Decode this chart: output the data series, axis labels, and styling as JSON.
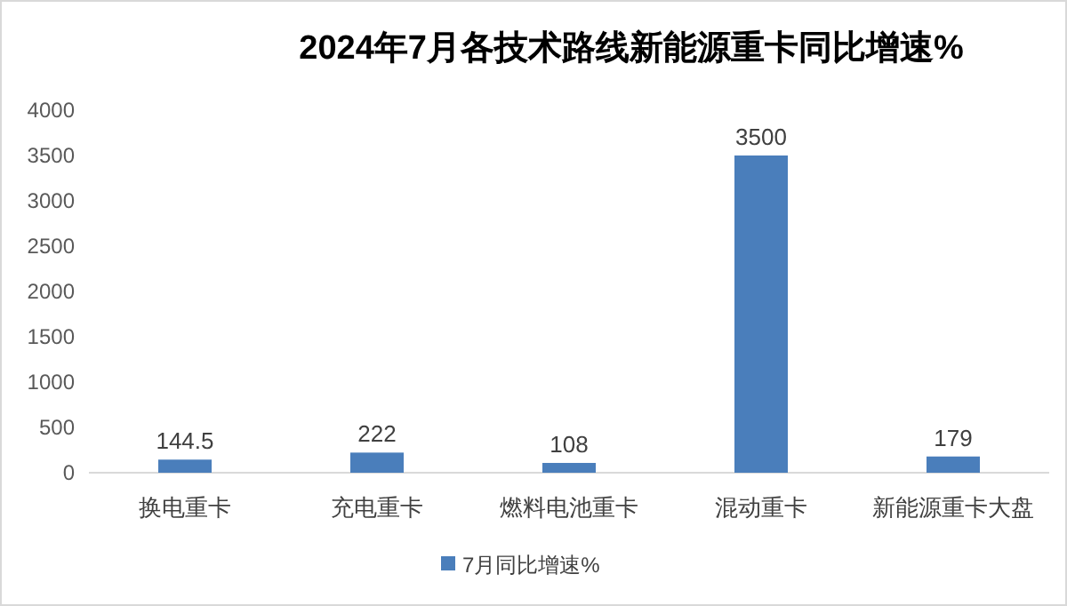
{
  "chart_data": {
    "type": "bar",
    "title": "2024年7月各技术路线新能源重卡同比增速%",
    "categories": [
      "换电重卡",
      "充电重卡",
      "燃料电池重卡",
      "混动重卡",
      "新能源重卡大盘"
    ],
    "series": [
      {
        "name": "7月同比增速%",
        "color": "#4a7ebb",
        "values": [
          144.5,
          222,
          108,
          3500,
          179
        ]
      }
    ],
    "ylim": [
      0,
      4000
    ],
    "yticks": [
      0,
      500,
      1000,
      1500,
      2000,
      2500,
      3000,
      3500,
      4000
    ],
    "data_labels": true,
    "legend": "bottom",
    "grid": false
  }
}
